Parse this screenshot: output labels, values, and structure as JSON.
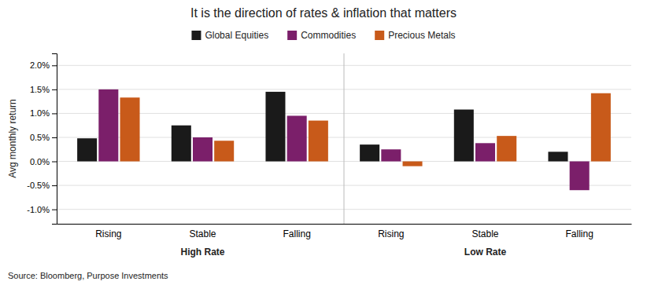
{
  "chart_data": {
    "type": "bar",
    "title": "It is the direction of rates & inflation that matters",
    "ylabel": "Avg monthly return",
    "source": "Source: Bloomberg, Purpose Investments",
    "categories": [
      "Rising",
      "Stable",
      "Falling",
      "Rising",
      "Stable",
      "Falling"
    ],
    "sections": [
      "High Rate",
      "High Rate",
      "High Rate",
      "Low Rate",
      "Low Rate",
      "Low Rate"
    ],
    "series": [
      {
        "name": "Global Equities",
        "color": "#1a1a1a",
        "values": [
          0.0048,
          0.0075,
          0.0145,
          0.0035,
          0.0108,
          0.002
        ]
      },
      {
        "name": "Commodities",
        "color": "#7B1F6A",
        "values": [
          0.015,
          0.005,
          0.0095,
          0.0025,
          0.0038,
          -0.006
        ]
      },
      {
        "name": "Precious Metals",
        "color": "#C85A1A",
        "values": [
          0.0133,
          0.0043,
          0.0085,
          -0.001,
          0.0053,
          0.0142
        ]
      }
    ],
    "ylim": [
      -0.013,
      0.0225
    ],
    "yticks": [
      {
        "value": -0.01,
        "label": "-1.0%"
      },
      {
        "value": -0.005,
        "label": "-0.5%"
      },
      {
        "value": 0.0,
        "label": "0.0%"
      },
      {
        "value": 0.005,
        "label": "0.5%"
      },
      {
        "value": 0.01,
        "label": "1.0%"
      },
      {
        "value": 0.015,
        "label": "1.5%"
      },
      {
        "value": 0.02,
        "label": "2.0%"
      }
    ],
    "grid": true,
    "legend": "top"
  }
}
